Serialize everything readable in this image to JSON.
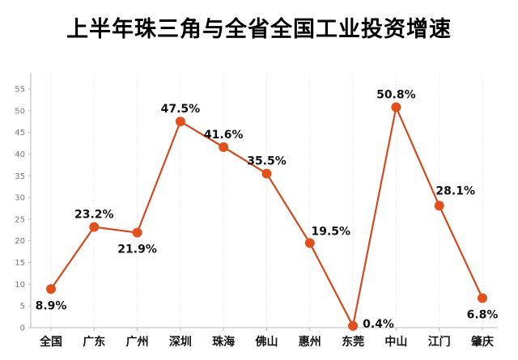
{
  "title": "上半年珠三角与全省全国工业投资增速",
  "colors": {
    "line": "#d24a1e",
    "marker": "#e0511c",
    "axis": "#bbbbbb",
    "grid": "#dddddd"
  },
  "chart_data": {
    "type": "line",
    "title": "上半年珠三角与全省全国工业投资增速",
    "xlabel": "",
    "ylabel": "",
    "categories": [
      "全国",
      "广东",
      "广州",
      "深圳",
      "珠海",
      "佛山",
      "惠州",
      "东莞",
      "中山",
      "江门",
      "肇庆"
    ],
    "series": [
      {
        "name": "工业投资增速",
        "values": [
          8.9,
          23.2,
          21.9,
          47.5,
          41.6,
          35.5,
          19.5,
          0.4,
          50.8,
          28.1,
          6.8
        ],
        "labels": [
          "8.9%",
          "23.2%",
          "21.9%",
          "47.5%",
          "41.6%",
          "35.5%",
          "19.5%",
          "0.4%",
          "50.8%",
          "28.1%",
          "6.8%"
        ]
      }
    ],
    "ylim": [
      0,
      55
    ],
    "yticks": [
      0,
      5,
      10,
      15,
      20,
      25,
      30,
      35,
      40,
      45,
      50,
      55
    ],
    "grid": {
      "vertical": true,
      "horizontal": false,
      "style": "dotted"
    },
    "legend": null
  }
}
